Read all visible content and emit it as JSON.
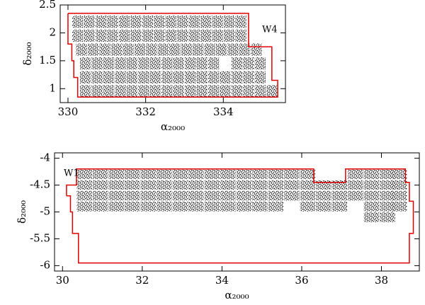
{
  "chart_data": [
    {
      "type": "scatter",
      "x_label": "α₂₀₀₀",
      "y_label": "δ₂₀₀₀",
      "annotation": "W4",
      "xlim": [
        329.8,
        335.6
      ],
      "ylim": [
        0.75,
        2.5
      ],
      "xticks": [
        330,
        332,
        334
      ],
      "yticks": [
        1,
        1.5,
        2,
        2.5
      ],
      "series": [
        {
          "type": "scatter",
          "color": "#000000",
          "x": [
            330.25,
            330.55,
            330.85,
            331.15,
            331.45,
            331.75,
            332.05,
            332.35,
            332.65,
            332.95,
            333.25,
            333.55,
            333.85,
            334.15,
            334.45,
            330.25,
            330.55,
            330.85,
            331.15,
            331.45,
            331.75,
            332.05,
            332.35,
            332.65,
            332.95,
            333.25,
            333.55,
            333.85,
            334.15,
            334.45,
            330.35,
            330.65,
            330.95,
            331.25,
            331.55,
            331.85,
            332.15,
            332.45,
            332.75,
            333.05,
            333.35,
            333.65,
            333.95,
            334.25,
            334.55,
            334.85,
            330.45,
            330.75,
            331.05,
            331.35,
            331.65,
            331.95,
            332.25,
            332.55,
            332.85,
            333.15,
            333.45,
            333.75,
            334.35,
            334.65,
            334.95,
            330.45,
            330.75,
            331.05,
            331.35,
            331.65,
            331.95,
            332.25,
            332.55,
            332.85,
            333.15,
            333.45,
            333.75,
            334.05,
            334.35,
            334.65,
            334.95,
            330.45,
            330.75,
            331.05,
            331.35,
            331.65,
            331.95,
            332.25,
            332.55,
            332.85,
            333.15,
            333.45,
            333.75,
            334.05,
            334.35,
            334.65,
            334.95,
            335.25
          ],
          "y": [
            2.2,
            2.2,
            2.2,
            2.2,
            2.2,
            2.2,
            2.2,
            2.2,
            2.2,
            2.2,
            2.2,
            2.2,
            2.2,
            2.2,
            2.2,
            1.95,
            1.95,
            1.95,
            1.95,
            1.95,
            1.95,
            1.95,
            1.95,
            1.95,
            1.95,
            1.95,
            1.95,
            1.95,
            1.95,
            1.95,
            1.7,
            1.7,
            1.7,
            1.7,
            1.7,
            1.7,
            1.7,
            1.7,
            1.7,
            1.7,
            1.7,
            1.7,
            1.7,
            1.7,
            1.7,
            1.7,
            1.45,
            1.45,
            1.45,
            1.45,
            1.45,
            1.45,
            1.45,
            1.45,
            1.45,
            1.45,
            1.45,
            1.45,
            1.45,
            1.45,
            1.45,
            1.2,
            1.2,
            1.2,
            1.2,
            1.2,
            1.2,
            1.2,
            1.2,
            1.2,
            1.2,
            1.2,
            1.2,
            1.2,
            1.2,
            1.2,
            1.2,
            0.95,
            0.95,
            0.95,
            0.95,
            0.95,
            0.95,
            0.95,
            0.95,
            0.95,
            0.95,
            0.95,
            0.95,
            0.95,
            0.95,
            0.95,
            0.95,
            0.95
          ]
        },
        {
          "type": "line",
          "color": "#e00000",
          "x": [
            330.0,
            334.65,
            334.65,
            335.25,
            335.25,
            335.4,
            335.4,
            330.25,
            330.25,
            330.15,
            330.15,
            330.1,
            330.1,
            330.0,
            330.0
          ],
          "y": [
            2.35,
            2.35,
            1.75,
            1.75,
            1.15,
            1.15,
            0.85,
            0.85,
            1.2,
            1.2,
            1.5,
            1.5,
            1.8,
            1.8,
            2.35
          ]
        }
      ]
    },
    {
      "type": "scatter",
      "x_label": "α₂₀₀₀",
      "y_label": "δ₂₀₀₀",
      "annotation": "W1",
      "xlim": [
        29.8,
        38.95
      ],
      "ylim": [
        -6.1,
        -3.9
      ],
      "xticks": [
        30,
        32,
        34,
        36,
        38
      ],
      "yticks": [
        -6,
        -5.5,
        -5,
        -4.5,
        -4
      ],
      "series": [
        {
          "type": "scatter",
          "color": "#000000",
          "x": [
            30.55,
            30.95,
            31.35,
            31.75,
            32.15,
            32.55,
            32.95,
            33.35,
            33.75,
            34.15,
            34.55,
            34.95,
            35.35,
            35.75,
            36.15,
            37.35,
            37.75,
            38.15,
            38.45,
            30.55,
            30.95,
            31.35,
            31.75,
            32.15,
            32.55,
            32.95,
            33.35,
            33.75,
            34.15,
            34.55,
            34.95,
            35.35,
            35.75,
            36.15,
            36.55,
            36.95,
            37.35,
            37.75,
            38.15,
            38.45,
            30.55,
            30.95,
            31.35,
            31.75,
            32.15,
            32.55,
            32.95,
            33.35,
            33.75,
            34.15,
            34.55,
            34.95,
            35.35,
            35.75,
            36.15,
            36.55,
            36.95,
            37.35,
            37.75,
            38.15,
            38.45,
            30.55,
            30.95,
            31.35,
            31.75,
            32.15,
            32.55,
            32.95,
            33.35,
            33.75,
            34.15,
            34.55,
            34.95,
            35.35,
            36.15,
            36.55,
            36.95,
            37.75,
            38.15,
            38.45,
            37.75,
            38.15
          ],
          "y": [
            -4.3,
            -4.3,
            -4.3,
            -4.3,
            -4.3,
            -4.3,
            -4.3,
            -4.3,
            -4.3,
            -4.3,
            -4.3,
            -4.3,
            -4.3,
            -4.3,
            -4.3,
            -4.3,
            -4.3,
            -4.3,
            -4.3,
            -4.5,
            -4.5,
            -4.5,
            -4.5,
            -4.5,
            -4.5,
            -4.5,
            -4.5,
            -4.5,
            -4.5,
            -4.5,
            -4.5,
            -4.5,
            -4.5,
            -4.5,
            -4.5,
            -4.5,
            -4.5,
            -4.5,
            -4.5,
            -4.5,
            -4.7,
            -4.7,
            -4.7,
            -4.7,
            -4.7,
            -4.7,
            -4.7,
            -4.7,
            -4.7,
            -4.7,
            -4.7,
            -4.7,
            -4.7,
            -4.7,
            -4.7,
            -4.7,
            -4.7,
            -4.7,
            -4.7,
            -4.7,
            -4.7,
            -4.9,
            -4.9,
            -4.9,
            -4.9,
            -4.9,
            -4.9,
            -4.9,
            -4.9,
            -4.9,
            -4.9,
            -4.9,
            -4.9,
            -4.9,
            -4.9,
            -4.9,
            -4.9,
            -4.9,
            -4.9,
            -4.9,
            -5.1,
            -5.1
          ]
        },
        {
          "type": "line",
          "color": "#e00000",
          "x": [
            30.1,
            30.1,
            30.35,
            30.35,
            36.3,
            36.3,
            37.1,
            37.1,
            38.6,
            38.6,
            38.7,
            38.7,
            38.8,
            38.8,
            38.7,
            38.7,
            30.4,
            30.4,
            30.25,
            30.25,
            30.2,
            30.2,
            30.1
          ],
          "y": [
            -4.7,
            -4.5,
            -4.5,
            -4.2,
            -4.2,
            -4.45,
            -4.45,
            -4.2,
            -4.2,
            -4.45,
            -4.45,
            -4.8,
            -4.8,
            -5.4,
            -5.4,
            -5.95,
            -5.95,
            -5.4,
            -5.4,
            -5.0,
            -5.0,
            -4.7,
            -4.7
          ]
        }
      ]
    }
  ]
}
